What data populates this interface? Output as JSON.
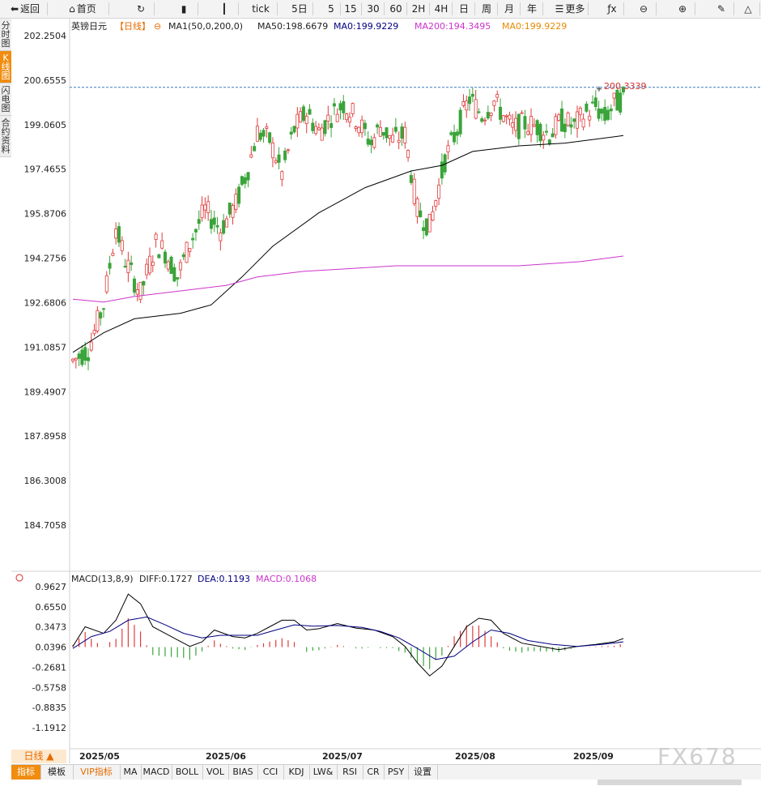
{
  "toolbar": {
    "items": [
      {
        "label": "返回",
        "icon": "back-arrow-icon"
      },
      {
        "label": "首页",
        "icon": "home-icon"
      },
      {
        "label": "",
        "icon": "refresh-icon"
      },
      {
        "label": "",
        "icon": "bar-chart-icon"
      },
      {
        "label": "",
        "icon": "candlestick-icon"
      },
      {
        "label": "tick",
        "icon": ""
      },
      {
        "label": "5日",
        "icon": ""
      },
      {
        "label": "5",
        "icon": ""
      },
      {
        "label": "15",
        "icon": ""
      },
      {
        "label": "30",
        "icon": ""
      },
      {
        "label": "60",
        "icon": ""
      },
      {
        "label": "2H",
        "icon": ""
      },
      {
        "label": "4H",
        "icon": ""
      },
      {
        "label": "日",
        "icon": ""
      },
      {
        "label": "周",
        "icon": ""
      },
      {
        "label": "月",
        "icon": ""
      },
      {
        "label": "年",
        "icon": ""
      },
      {
        "label": "更多",
        "icon": "menu-icon"
      },
      {
        "label": "",
        "icon": "function-icon"
      },
      {
        "label": "",
        "icon": "zoom-out-icon"
      },
      {
        "label": "",
        "icon": "zoom-in-icon"
      },
      {
        "label": "",
        "icon": "pen-icon"
      },
      {
        "label": "",
        "icon": "triangle-icon"
      }
    ]
  },
  "left_tabs": [
    {
      "label": "分时图",
      "active": false
    },
    {
      "label": "K线图",
      "active": true
    },
    {
      "label": "闪电图",
      "active": false
    },
    {
      "label": "合约资料",
      "active": false
    }
  ],
  "legend": {
    "symbol": "英镑日元",
    "period": "【日线】",
    "ma_settings": "MA1(50,0,200,0)",
    "ma50": "MA50:198.6679",
    "ma0_a": "MA0:199.9229",
    "ma200": "MA200:194.3495",
    "ma0_b": "MA0:199.9229"
  },
  "macd_legend": {
    "name": "MACD(13,8,9)",
    "diff": "DIFF:0.1727",
    "dea": "DEA:0.1193",
    "macd": "MACD:0.1068"
  },
  "high_marker": "200.3339",
  "period_indicator": "日线 ▲",
  "bottom_tabs": [
    "指标",
    "模板",
    "VIP指标",
    "MA",
    "MACD",
    "BOLL",
    "VOL",
    "BIAS",
    "CCI",
    "KDJ",
    "LW&",
    "RSI",
    "CR",
    "PSY",
    "设置"
  ],
  "watermark": "FX678",
  "colors": {
    "up": "#e03c3c",
    "down": "#3aa43a",
    "ma50": "#000000",
    "ma200": "#cc33cc",
    "dashed": "#3a7bbf",
    "accent": "#f08c10",
    "diff": "#000000",
    "dea": "#000080"
  },
  "chart_data": [
    {
      "type": "candlestick",
      "title": "英镑日元",
      "ylim": [
        184.7058,
        202.2504
      ],
      "yticks": [
        "202.2504",
        "200.6555",
        "199.0605",
        "197.4655",
        "195.8706",
        "194.2756",
        "192.6806",
        "191.0857",
        "189.4907",
        "187.8958",
        "186.3008",
        "184.7058"
      ],
      "xlabels": [
        "2025/05",
        "2025/06",
        "2025/07",
        "2025/08",
        "2025/09"
      ],
      "dashed_level": 200.4,
      "ma50_end": 198.6679,
      "ma200_end": 194.3495
    },
    {
      "type": "macd",
      "ylim": [
        -1.1912,
        0.9627
      ],
      "yticks": [
        "0.9627",
        "0.6550",
        "0.3473",
        "0.0396",
        "-0.2681",
        "-0.5758",
        "-0.8835",
        "-1.1912"
      ],
      "diff_end": 0.1727,
      "dea_end": 0.1193,
      "macd_end": 0.1068
    }
  ]
}
